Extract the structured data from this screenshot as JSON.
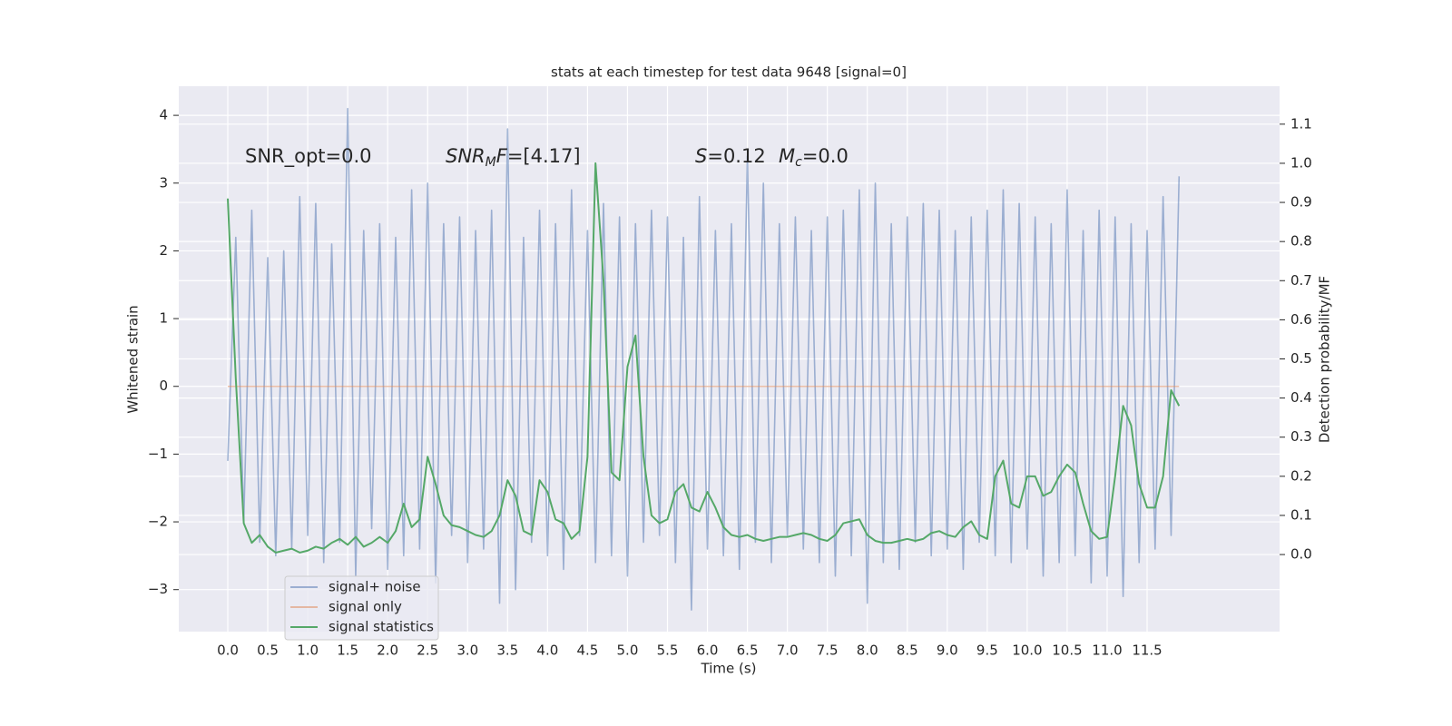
{
  "chart_data": {
    "type": "line",
    "title": "stats at each timestep for test data 9648 [signal=0]",
    "xlabel": "Time (s)",
    "ylabel": "Whitened strain",
    "y2label": "Detection probability/MF",
    "grid": true,
    "legend": "lower left",
    "xlim": [
      -0.613,
      13.157
    ],
    "ylim": [
      -3.62,
      4.43
    ],
    "y2lim": [
      -0.197,
      1.197
    ],
    "xticks": [
      {
        "value": 0,
        "label": "0.0"
      },
      0.5,
      {
        "value": 1,
        "label": "1.0"
      },
      1.5,
      {
        "value": 2,
        "label": "2.0"
      },
      2.5,
      {
        "value": 3,
        "label": "3.0"
      },
      3.5,
      {
        "value": 4,
        "label": "4.0"
      },
      4.5,
      {
        "value": 5,
        "label": "5.0"
      },
      5.5,
      {
        "value": 6,
        "label": "6.0"
      },
      6.5,
      {
        "value": 7,
        "label": "7.0"
      },
      7.5,
      {
        "value": 8,
        "label": "8.0"
      },
      8.5,
      {
        "value": 9,
        "label": "9.0"
      },
      9.5,
      {
        "value": 10,
        "label": "10.0"
      },
      10.5,
      {
        "value": 11,
        "label": "11.0"
      },
      11.5
    ],
    "yticks": [
      {
        "value": -3,
        "label": "−3"
      },
      {
        "value": -2,
        "label": "−2"
      },
      {
        "value": -1,
        "label": "−1"
      },
      0,
      1,
      2,
      3,
      4
    ],
    "y2ticks": [
      {
        "value": 0,
        "label": "0.0"
      },
      0.1,
      0.2,
      0.3,
      0.4,
      0.5,
      0.6,
      0.7,
      0.8,
      0.9,
      {
        "value": 1,
        "label": "1.0"
      },
      1.1
    ],
    "annotations": [
      {
        "parts": [
          {
            "text": "SNR_opt=0.0",
            "style": "normal"
          }
        ]
      },
      {
        "parts": [
          {
            "text": "SNR",
            "style": "italic"
          },
          {
            "text": "M",
            "style": "sub"
          },
          {
            "text": "F",
            "style": "italic"
          },
          {
            "text": "=[4.17]",
            "style": "normal"
          }
        ]
      },
      {
        "parts": [
          {
            "text": "S",
            "style": "italic"
          },
          {
            "text": "=0.12",
            "style": "normal"
          }
        ]
      },
      {
        "parts": [
          {
            "text": "M",
            "style": "italic"
          },
          {
            "text": "c",
            "style": "sub"
          },
          {
            "text": "=0.0",
            "style": "normal"
          }
        ]
      }
    ],
    "x": [
      0.0,
      0.1,
      0.2,
      0.3,
      0.4,
      0.5,
      0.6,
      0.7,
      0.8,
      0.9,
      1.0,
      1.1,
      1.2,
      1.3,
      1.4,
      1.5,
      1.6,
      1.7,
      1.8,
      1.9,
      2.0,
      2.1,
      2.2,
      2.3,
      2.4,
      2.5,
      2.6,
      2.7,
      2.8,
      2.9,
      3.0,
      3.1,
      3.2,
      3.3,
      3.4,
      3.5,
      3.6,
      3.7,
      3.8,
      3.9,
      4.0,
      4.1,
      4.2,
      4.3,
      4.4,
      4.5,
      4.6,
      4.7,
      4.8,
      4.9,
      5.0,
      5.1,
      5.2,
      5.3,
      5.4,
      5.5,
      5.6,
      5.7,
      5.8,
      5.9,
      6.0,
      6.1,
      6.2,
      6.3,
      6.4,
      6.5,
      6.6,
      6.7,
      6.8,
      6.9,
      7.0,
      7.1,
      7.2,
      7.3,
      7.4,
      7.5,
      7.6,
      7.7,
      7.8,
      7.9,
      8.0,
      8.1,
      8.2,
      8.3,
      8.4,
      8.5,
      8.6,
      8.7,
      8.8,
      8.9,
      9.0,
      9.1,
      9.2,
      9.3,
      9.4,
      9.5,
      9.6,
      9.7,
      9.8,
      9.9,
      10.0,
      10.1,
      10.2,
      10.3,
      10.4,
      10.5,
      10.6,
      10.7,
      10.8,
      10.9,
      11.0,
      11.1,
      11.2,
      11.3,
      11.4,
      11.5,
      11.6,
      11.7,
      11.8,
      11.9
    ],
    "series": [
      {
        "name": "signal+ noise",
        "color": "#4c72b0",
        "axis": "y",
        "values": [
          -1.1,
          2.2,
          -2.0,
          2.6,
          -2.3,
          1.9,
          -2.5,
          2.0,
          -2.4,
          2.8,
          -2.2,
          2.7,
          -2.6,
          2.1,
          -2.3,
          4.1,
          -2.8,
          2.3,
          -2.1,
          2.4,
          -2.7,
          2.2,
          -2.5,
          2.9,
          -2.4,
          3.0,
          -2.9,
          2.4,
          -2.2,
          2.5,
          -2.6,
          2.3,
          -2.4,
          2.6,
          -3.2,
          3.8,
          -3.0,
          2.2,
          -2.3,
          2.6,
          -2.5,
          2.4,
          -2.7,
          2.9,
          -2.2,
          2.3,
          -2.6,
          2.7,
          -2.5,
          2.5,
          -2.8,
          2.4,
          -2.3,
          2.6,
          -2.2,
          2.5,
          -2.6,
          2.2,
          -3.3,
          2.8,
          -2.4,
          2.3,
          -2.5,
          2.4,
          -2.7,
          3.4,
          -2.3,
          3.0,
          -2.6,
          2.4,
          -2.2,
          2.5,
          -2.4,
          2.3,
          -2.6,
          2.5,
          -2.8,
          2.6,
          -2.5,
          2.9,
          -3.2,
          3.0,
          -2.6,
          2.4,
          -2.7,
          2.5,
          -2.3,
          2.7,
          -2.5,
          2.6,
          -2.4,
          2.3,
          -2.7,
          2.5,
          -2.3,
          2.6,
          -2.5,
          2.9,
          -2.6,
          2.7,
          -2.4,
          2.5,
          -2.8,
          2.4,
          -2.6,
          2.9,
          -2.5,
          2.3,
          -2.9,
          2.6,
          -2.8,
          2.5,
          -3.1,
          2.4,
          -2.6,
          2.3,
          -2.4,
          2.8,
          -2.2,
          3.1
        ]
      },
      {
        "name": "signal only",
        "color": "#dd8452",
        "axis": "y",
        "values": [
          0,
          0,
          0,
          0,
          0,
          0,
          0,
          0,
          0,
          0,
          0,
          0,
          0,
          0,
          0,
          0,
          0,
          0,
          0,
          0,
          0,
          0,
          0,
          0,
          0,
          0,
          0,
          0,
          0,
          0,
          0,
          0,
          0,
          0,
          0,
          0,
          0,
          0,
          0,
          0,
          0,
          0,
          0,
          0,
          0,
          0,
          0,
          0,
          0,
          0,
          0,
          0,
          0,
          0,
          0,
          0,
          0,
          0,
          0,
          0,
          0,
          0,
          0,
          0,
          0,
          0,
          0,
          0,
          0,
          0,
          0,
          0,
          0,
          0,
          0,
          0,
          0,
          0,
          0,
          0,
          0,
          0,
          0,
          0,
          0,
          0,
          0,
          0,
          0,
          0,
          0,
          0,
          0,
          0,
          0,
          0,
          0,
          0,
          0,
          0,
          0,
          0,
          0,
          0,
          0,
          0,
          0,
          0,
          0,
          0,
          0,
          0,
          0,
          0,
          0,
          0,
          0,
          0,
          0,
          0
        ]
      },
      {
        "name": "signal statistics",
        "color": "#55a868",
        "axis": "y2",
        "values": [
          0.91,
          0.45,
          0.08,
          0.03,
          0.05,
          0.02,
          0.005,
          0.01,
          0.015,
          0.005,
          0.01,
          0.02,
          0.015,
          0.03,
          0.04,
          0.025,
          0.045,
          0.02,
          0.03,
          0.045,
          0.03,
          0.06,
          0.13,
          0.07,
          0.09,
          0.25,
          0.18,
          0.1,
          0.075,
          0.07,
          0.06,
          0.05,
          0.045,
          0.06,
          0.1,
          0.19,
          0.15,
          0.06,
          0.05,
          0.19,
          0.16,
          0.09,
          0.08,
          0.04,
          0.06,
          0.25,
          1.0,
          0.7,
          0.21,
          0.19,
          0.48,
          0.56,
          0.25,
          0.1,
          0.08,
          0.09,
          0.16,
          0.18,
          0.12,
          0.11,
          0.16,
          0.12,
          0.07,
          0.05,
          0.045,
          0.05,
          0.04,
          0.035,
          0.04,
          0.045,
          0.045,
          0.05,
          0.055,
          0.05,
          0.04,
          0.035,
          0.05,
          0.08,
          0.085,
          0.09,
          0.05,
          0.035,
          0.03,
          0.03,
          0.035,
          0.04,
          0.035,
          0.04,
          0.055,
          0.06,
          0.05,
          0.045,
          0.07,
          0.085,
          0.05,
          0.04,
          0.2,
          0.24,
          0.13,
          0.12,
          0.2,
          0.2,
          0.15,
          0.16,
          0.2,
          0.23,
          0.21,
          0.13,
          0.06,
          0.04,
          0.045,
          0.2,
          0.38,
          0.33,
          0.18,
          0.12,
          0.12,
          0.2,
          0.42,
          0.38
        ]
      }
    ]
  }
}
